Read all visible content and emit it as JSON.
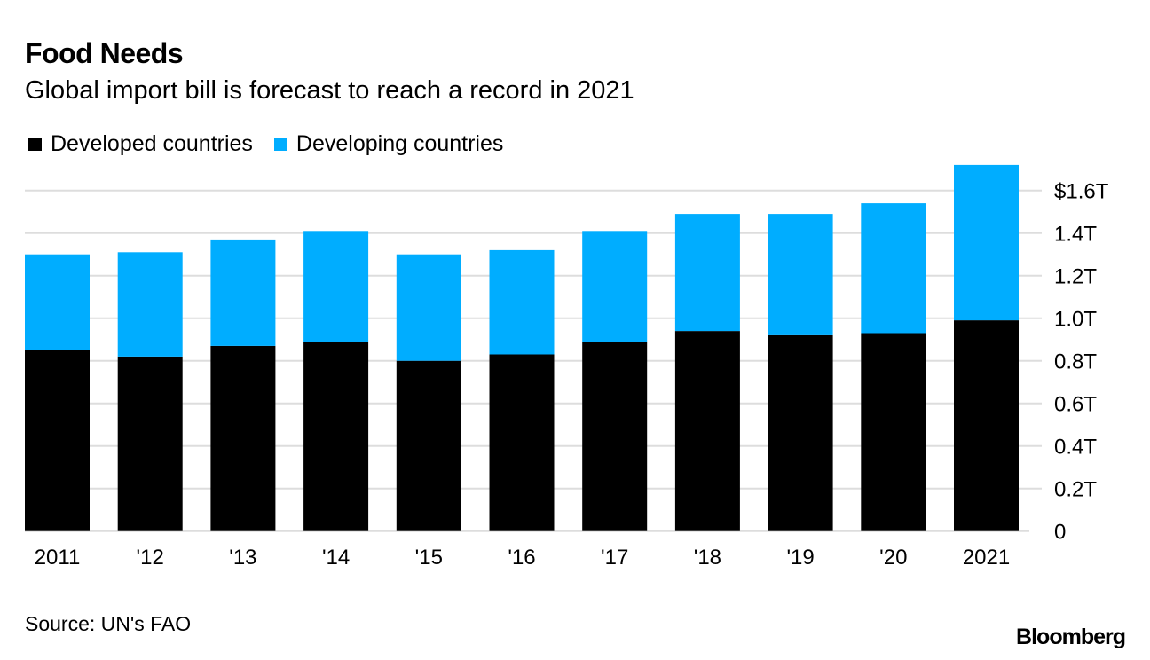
{
  "header": {
    "title": "Food Needs",
    "subtitle": "Global import bill is forecast to reach a record in 2021"
  },
  "footer": {
    "source": "Source: UN's FAO",
    "brand": "Bloomberg"
  },
  "colors": {
    "developed": "#000000",
    "developing": "#00ADFF",
    "grid": "#DDDDDD"
  },
  "chart_data": {
    "type": "bar",
    "stacked": true,
    "title": "Food Needs",
    "subtitle": "Global import bill is forecast to reach a record in 2021",
    "xlabel": "",
    "ylabel": "",
    "categories": [
      "2011",
      "'12",
      "'13",
      "'14",
      "'15",
      "'16",
      "'17",
      "'18",
      "'19",
      "'20",
      "2021"
    ],
    "series": [
      {
        "name": "Developed countries",
        "color": "#000000",
        "values": [
          0.85,
          0.82,
          0.87,
          0.89,
          0.8,
          0.83,
          0.89,
          0.94,
          0.92,
          0.93,
          0.99
        ]
      },
      {
        "name": "Developing countries",
        "color": "#00ADFF",
        "values": [
          0.45,
          0.49,
          0.5,
          0.52,
          0.5,
          0.49,
          0.52,
          0.55,
          0.57,
          0.61,
          0.73
        ]
      }
    ],
    "totals": [
      1.3,
      1.31,
      1.37,
      1.41,
      1.3,
      1.32,
      1.41,
      1.49,
      1.49,
      1.54,
      1.72
    ],
    "units": "trillion USD",
    "ylim": [
      0,
      1.6
    ],
    "yticks": [
      0,
      0.2,
      0.4,
      0.6,
      0.8,
      1.0,
      1.2,
      1.4,
      1.6
    ],
    "ytick_labels": [
      "0",
      "0.2T",
      "0.4T",
      "0.6T",
      "0.8T",
      "1.0T",
      "1.2T",
      "1.4T",
      "$1.6T"
    ],
    "grid": true,
    "y_axis_side": "right",
    "legend": {
      "placement": "top-left",
      "entries": [
        "Developed countries",
        "Developing countries"
      ]
    }
  }
}
